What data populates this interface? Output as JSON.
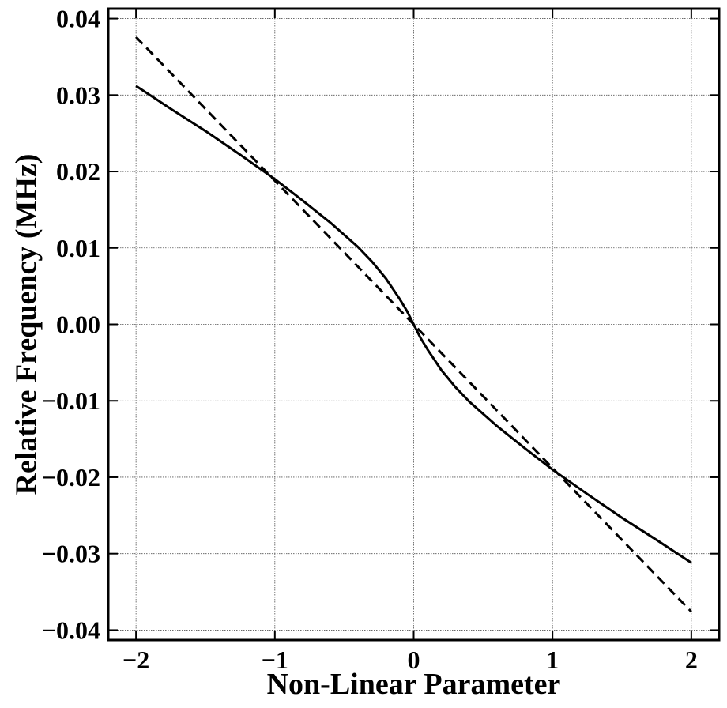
{
  "chart_data": {
    "type": "line",
    "title": "",
    "xlabel": "Non-Linear Parameter",
    "ylabel": "Relative Frequency (MHz)",
    "xlim": [
      -2.2,
      2.2
    ],
    "ylim": [
      -0.0413,
      0.0413
    ],
    "xticks": [
      -2,
      -1,
      0,
      1,
      2
    ],
    "xtick_labels": [
      "−2",
      "−1",
      "0",
      "1",
      "2"
    ],
    "yticks": [
      -0.04,
      -0.03,
      -0.02,
      -0.01,
      0.0,
      0.01,
      0.02,
      0.03,
      0.04
    ],
    "ytick_labels": [
      "−0.04",
      "−0.03",
      "−0.02",
      "−0.01",
      "0.00",
      "0.01",
      "0.02",
      "0.03",
      "0.04"
    ],
    "grid": true,
    "legend": "none",
    "series": [
      {
        "style": "solid",
        "color": "#000000",
        "x": [
          -2.0,
          -1.75,
          -1.5,
          -1.25,
          -1.0,
          -0.8,
          -0.6,
          -0.4,
          -0.3,
          -0.2,
          -0.1,
          -0.05,
          0.0,
          0.05,
          0.1,
          0.2,
          0.3,
          0.4,
          0.6,
          0.8,
          1.0,
          1.25,
          1.5,
          1.75,
          2.0
        ],
        "y": [
          0.0312,
          0.0282,
          0.0253,
          0.0222,
          0.019,
          0.0162,
          0.0133,
          0.0101,
          0.0082,
          0.006,
          0.0033,
          0.0018,
          0.0,
          -0.0018,
          -0.0033,
          -0.006,
          -0.0082,
          -0.0101,
          -0.0133,
          -0.0162,
          -0.019,
          -0.0222,
          -0.0253,
          -0.0282,
          -0.0312
        ]
      },
      {
        "style": "dashed",
        "color": "#000000",
        "x": [
          -2.0,
          2.0
        ],
        "y": [
          0.0376,
          -0.0376
        ]
      }
    ]
  }
}
